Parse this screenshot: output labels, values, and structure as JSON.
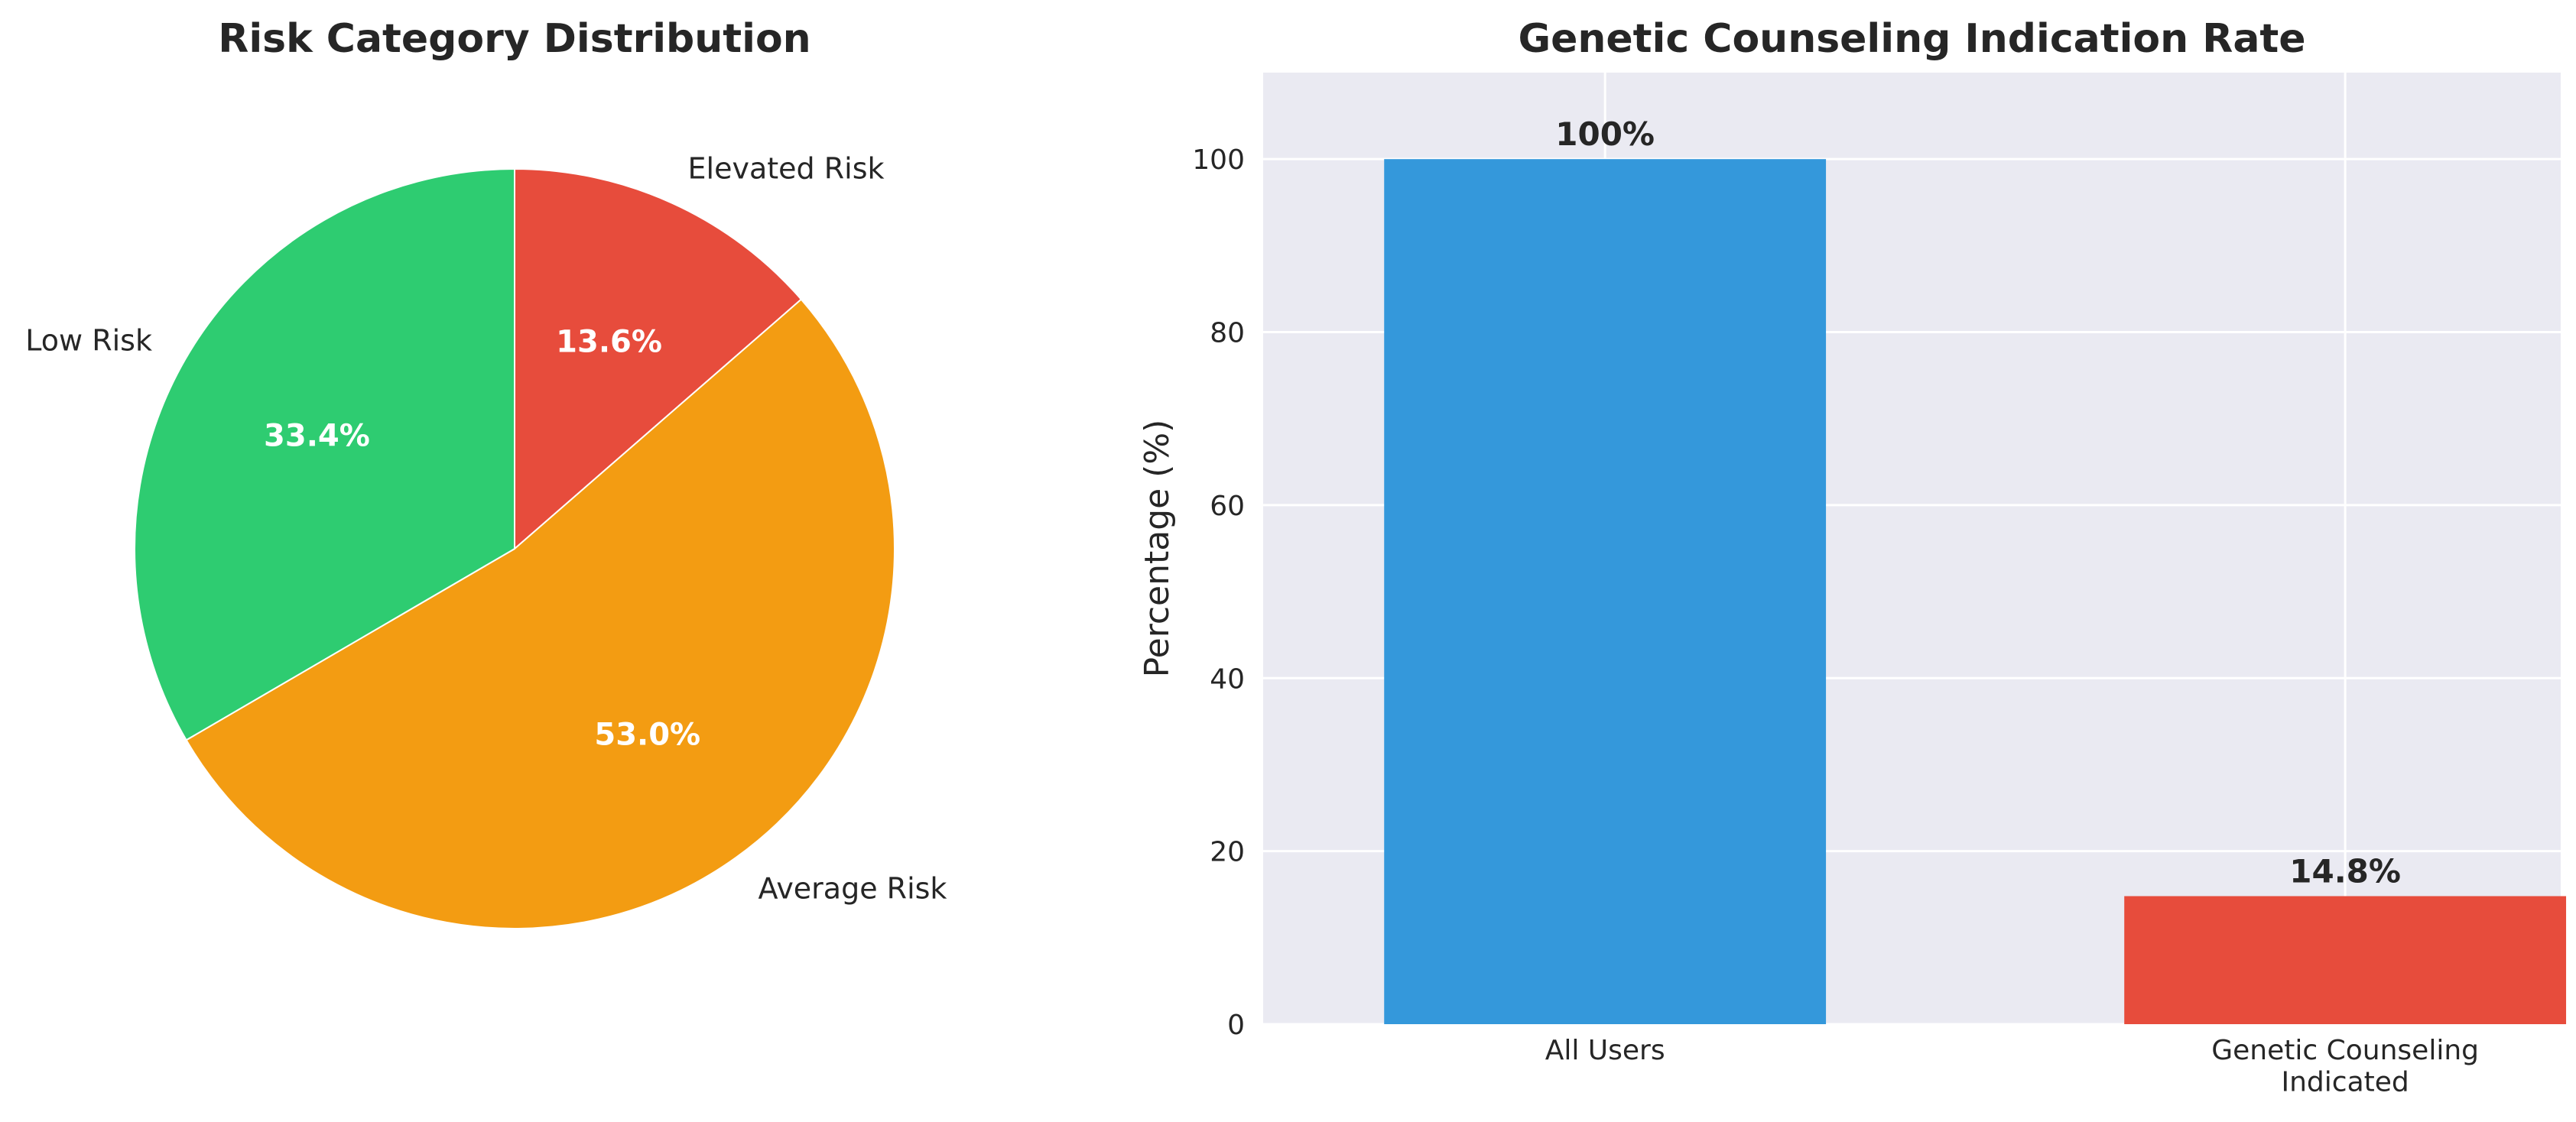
{
  "chart_data": [
    {
      "type": "pie",
      "title": "Risk Category Distribution",
      "slices": [
        {
          "label": "Elevated Risk",
          "value": 13.6,
          "pct_label": "13.6%",
          "color": "#e74c3c"
        },
        {
          "label": "Average Risk",
          "value": 53.0,
          "pct_label": "53.0%",
          "color": "#f39c12"
        },
        {
          "label": "Low Risk",
          "value": 33.4,
          "pct_label": "33.4%",
          "color": "#2ecc71"
        }
      ],
      "start_angle": "top",
      "direction": "clockwise"
    },
    {
      "type": "bar",
      "title": "Genetic Counseling Indication Rate",
      "categories": [
        "All Users",
        "Genetic Counseling\nIndicated"
      ],
      "values": [
        100,
        14.8
      ],
      "value_labels": [
        "100%",
        "14.8%"
      ],
      "colors": [
        "#3498db",
        "#e74c3c"
      ],
      "xlabel": "",
      "ylabel": "Percentage (%)",
      "ylim": [
        0,
        110
      ],
      "yticks": [
        0,
        20,
        40,
        60,
        80,
        100
      ],
      "grid": true,
      "background": "#eaeaf2"
    }
  ]
}
